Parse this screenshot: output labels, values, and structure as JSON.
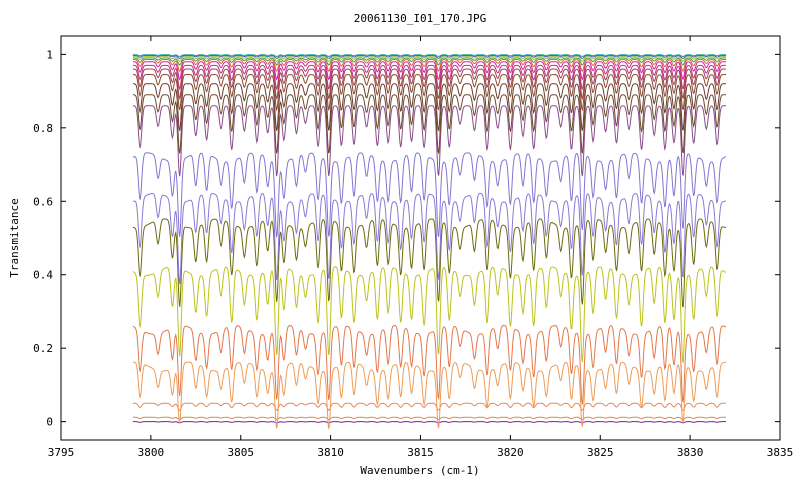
{
  "chart_data": {
    "type": "line",
    "title": "20061130_I01_170.JPG",
    "xlabel": "Wavenumbers (cm-1)",
    "ylabel": "Transmitance",
    "xlim": [
      3795,
      3835
    ],
    "ylim": [
      -0.05,
      1.05
    ],
    "x_range_of_data": [
      3799,
      3832
    ],
    "xticks": [
      3795,
      3800,
      3805,
      3810,
      3815,
      3820,
      3825,
      3830,
      3835
    ],
    "yticks": [
      0,
      0.2,
      0.4,
      0.6,
      0.8,
      1
    ],
    "ytick_labels": [
      "0",
      "0.2",
      "0.4",
      "0.6",
      "0.8",
      "1"
    ],
    "grid": false,
    "legend": "none",
    "absorption_line_centers": [
      3799.4,
      3800.4,
      3801.2,
      3801.6,
      3802.5,
      3803.1,
      3803.9,
      3804.5,
      3805.2,
      3805.9,
      3806.5,
      3807.0,
      3807.4,
      3808.1,
      3808.6,
      3809.3,
      3809.9,
      3810.6,
      3811.3,
      3812.0,
      3812.6,
      3813.2,
      3813.9,
      3814.5,
      3815.2,
      3816.0,
      3816.6,
      3817.2,
      3818.0,
      3818.7,
      3819.3,
      3820.0,
      3820.7,
      3821.3,
      3822.0,
      3822.8,
      3823.4,
      3824.0,
      3824.6,
      3825.3,
      3825.9,
      3826.6,
      3827.3,
      3828.0,
      3828.6,
      3829.1,
      3829.6,
      3830.2,
      3830.9,
      3831.5
    ],
    "series": [
      {
        "baseline": 0.0,
        "color": "#7a1fa0",
        "depth_scale": 0.002
      },
      {
        "baseline": 0.012,
        "color": "#d98b4f",
        "depth_scale": 0.004
      },
      {
        "baseline": 0.05,
        "color": "#e48a5e",
        "depth_scale": 0.012
      },
      {
        "baseline": 0.15,
        "color": "#ef9b55",
        "depth_scale": 0.1
      },
      {
        "baseline": 0.25,
        "color": "#e4774a",
        "depth_scale": 0.12
      },
      {
        "baseline": 0.41,
        "color": "#bcc31b",
        "depth_scale": 0.15
      },
      {
        "baseline": 0.54,
        "color": "#6b6b0e",
        "depth_scale": 0.14
      },
      {
        "baseline": 0.61,
        "color": "#8c78d6",
        "depth_scale": 0.14
      },
      {
        "baseline": 0.72,
        "color": "#8474d2",
        "depth_scale": 0.13
      },
      {
        "baseline": 0.86,
        "color": "#8a4c8a",
        "depth_scale": 0.12
      },
      {
        "baseline": 0.89,
        "color": "#6b4a2c",
        "depth_scale": 0.1
      },
      {
        "baseline": 0.92,
        "color": "#6b3a2c",
        "depth_scale": 0.08
      },
      {
        "baseline": 0.945,
        "color": "#8a4a2c",
        "depth_scale": 0.06
      },
      {
        "baseline": 0.96,
        "color": "#a0405a",
        "depth_scale": 0.05
      },
      {
        "baseline": 0.97,
        "color": "#c0307a",
        "depth_scale": 0.04
      },
      {
        "baseline": 0.98,
        "color": "#d020a0",
        "depth_scale": 0.03
      },
      {
        "baseline": 0.986,
        "color": "#e06030",
        "depth_scale": 0.02
      },
      {
        "baseline": 0.99,
        "color": "#40a040",
        "depth_scale": 0.012
      },
      {
        "baseline": 0.994,
        "color": "#a0c040",
        "depth_scale": 0.008
      },
      {
        "baseline": 0.997,
        "color": "#4060c0",
        "depth_scale": 0.005
      },
      {
        "baseline": 0.999,
        "color": "#20a0a0",
        "depth_scale": 0.003
      }
    ]
  }
}
